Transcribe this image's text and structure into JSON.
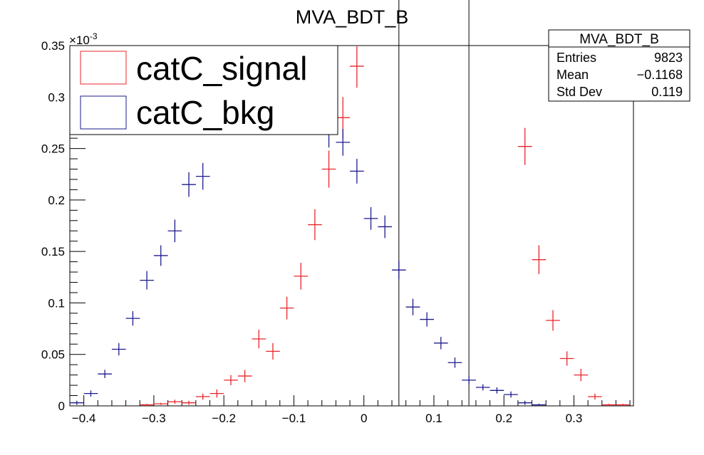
{
  "chart_data": {
    "type": "scatter",
    "title": "MVA_BDT_B",
    "xlabel": "",
    "ylabel": "",
    "xlim": [
      -0.42,
      0.385
    ],
    "ylim": [
      0,
      0.35
    ],
    "y_exponent_label": "×10",
    "y_exponent_power": "-3",
    "x_ticks": [
      -0.4,
      -0.3,
      -0.2,
      -0.1,
      0,
      0.1,
      0.2,
      0.3
    ],
    "x_tick_labels": [
      "−0.4",
      "−0.3",
      "−0.2",
      "−0.1",
      "0",
      "0.1",
      "0.2",
      "0.3"
    ],
    "y_ticks": [
      0,
      0.05,
      0.1,
      0.15,
      0.2,
      0.25,
      0.3,
      0.35
    ],
    "y_tick_labels": [
      "0",
      "0.05",
      "0.1",
      "0.15",
      "0.2",
      "0.25",
      "0.3",
      "0.35"
    ],
    "bin_width": 0.02,
    "vertical_lines": [
      0.05,
      0.15
    ],
    "series": [
      {
        "name": "catC_signal",
        "color": "#e8262b",
        "points": [
          {
            "x": -0.31,
            "y": 0.001,
            "err": 0.001
          },
          {
            "x": -0.29,
            "y": 0.002,
            "err": 0.001
          },
          {
            "x": -0.27,
            "y": 0.004,
            "err": 0.002
          },
          {
            "x": -0.25,
            "y": 0.003,
            "err": 0.002
          },
          {
            "x": -0.23,
            "y": 0.009,
            "err": 0.003
          },
          {
            "x": -0.21,
            "y": 0.012,
            "err": 0.004
          },
          {
            "x": -0.19,
            "y": 0.025,
            "err": 0.005
          },
          {
            "x": -0.17,
            "y": 0.029,
            "err": 0.006
          },
          {
            "x": -0.15,
            "y": 0.065,
            "err": 0.009
          },
          {
            "x": -0.13,
            "y": 0.053,
            "err": 0.008
          },
          {
            "x": -0.11,
            "y": 0.095,
            "err": 0.011
          },
          {
            "x": -0.09,
            "y": 0.126,
            "err": 0.013
          },
          {
            "x": -0.07,
            "y": 0.176,
            "err": 0.015
          },
          {
            "x": -0.05,
            "y": 0.23,
            "err": 0.018
          },
          {
            "x": -0.03,
            "y": 0.28,
            "err": 0.02
          },
          {
            "x": -0.01,
            "y": 0.33,
            "err": 0.021
          },
          {
            "x": 0.23,
            "y": 0.252,
            "err": 0.018
          },
          {
            "x": 0.25,
            "y": 0.142,
            "err": 0.014
          },
          {
            "x": 0.27,
            "y": 0.083,
            "err": 0.01
          },
          {
            "x": 0.29,
            "y": 0.046,
            "err": 0.007
          },
          {
            "x": 0.31,
            "y": 0.03,
            "err": 0.006
          },
          {
            "x": 0.33,
            "y": 0.009,
            "err": 0.003
          },
          {
            "x": 0.35,
            "y": 0.001,
            "err": 0.001
          },
          {
            "x": 0.37,
            "y": 0.001,
            "err": 0.001
          }
        ]
      },
      {
        "name": "catC_bkg",
        "color": "#1c1b8c",
        "points": [
          {
            "x": -0.41,
            "y": 0.003,
            "err": 0.002
          },
          {
            "x": -0.39,
            "y": 0.012,
            "err": 0.003
          },
          {
            "x": -0.37,
            "y": 0.031,
            "err": 0.004
          },
          {
            "x": -0.35,
            "y": 0.055,
            "err": 0.006
          },
          {
            "x": -0.33,
            "y": 0.085,
            "err": 0.007
          },
          {
            "x": -0.31,
            "y": 0.122,
            "err": 0.009
          },
          {
            "x": -0.29,
            "y": 0.146,
            "err": 0.01
          },
          {
            "x": -0.27,
            "y": 0.17,
            "err": 0.011
          },
          {
            "x": -0.25,
            "y": 0.215,
            "err": 0.012
          },
          {
            "x": -0.23,
            "y": 0.223,
            "err": 0.013
          },
          {
            "x": -0.05,
            "y": 0.265,
            "err": 0.014
          },
          {
            "x": -0.03,
            "y": 0.256,
            "err": 0.013
          },
          {
            "x": -0.01,
            "y": 0.228,
            "err": 0.012
          },
          {
            "x": 0.01,
            "y": 0.182,
            "err": 0.011
          },
          {
            "x": 0.03,
            "y": 0.174,
            "err": 0.011
          },
          {
            "x": 0.05,
            "y": 0.132,
            "err": 0.009
          },
          {
            "x": 0.07,
            "y": 0.096,
            "err": 0.008
          },
          {
            "x": 0.09,
            "y": 0.084,
            "err": 0.007
          },
          {
            "x": 0.11,
            "y": 0.061,
            "err": 0.006
          },
          {
            "x": 0.13,
            "y": 0.042,
            "err": 0.005
          },
          {
            "x": 0.15,
            "y": 0.025,
            "err": 0.004
          },
          {
            "x": 0.17,
            "y": 0.018,
            "err": 0.003
          },
          {
            "x": 0.19,
            "y": 0.015,
            "err": 0.003
          },
          {
            "x": 0.21,
            "y": 0.011,
            "err": 0.003
          },
          {
            "x": 0.23,
            "y": 0.003,
            "err": 0.002
          },
          {
            "x": 0.25,
            "y": 0.001,
            "err": 0.001
          }
        ]
      }
    ],
    "legend": {
      "placement": "top-left",
      "entries": [
        "catC_signal",
        "catC_bkg"
      ]
    },
    "stats_box": {
      "title": "MVA_BDT_B",
      "rows": [
        {
          "label": "Entries",
          "value": "9823"
        },
        {
          "label": "Mean",
          "value": "−0.1168"
        },
        {
          "label": "Std Dev",
          "value": "0.119"
        }
      ]
    }
  }
}
